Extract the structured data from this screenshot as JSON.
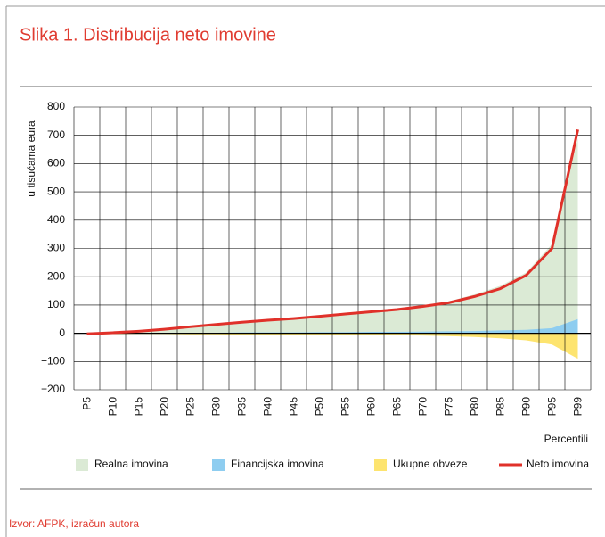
{
  "chart_data": {
    "type": "area-line",
    "title": "Slika 1. Distribucija neto imovine",
    "y_label": "u tisućama eura",
    "x_label": "Percentili",
    "source": "Izvor: AFPK, izračun autora",
    "categories": [
      "P5",
      "P10",
      "P15",
      "P20",
      "P25",
      "P30",
      "P35",
      "P40",
      "P45",
      "P50",
      "P55",
      "P60",
      "P65",
      "P70",
      "P75",
      "P80",
      "P85",
      "P90",
      "P95",
      "P99"
    ],
    "series": [
      {
        "name": "Realna imovina",
        "color": "#dbead5",
        "kind": "area",
        "values": [
          3,
          4,
          8,
          15,
          25,
          33,
          41,
          48,
          55,
          63,
          71,
          80,
          88,
          99,
          113,
          137,
          168,
          215,
          315,
          690
        ]
      },
      {
        "name": "Financijska imovina",
        "color": "#8ecdf0",
        "kind": "area",
        "values": [
          1,
          1,
          1,
          2,
          2,
          2,
          3,
          3,
          3,
          4,
          4,
          5,
          5,
          6,
          7,
          8,
          10,
          12,
          18,
          50
        ]
      },
      {
        "name": "Ukupne obveze",
        "color": "#fde46f",
        "kind": "area",
        "values": [
          -5,
          -3,
          -2,
          -3,
          -4,
          -4,
          -5,
          -5,
          -6,
          -6,
          -7,
          -7,
          -7,
          -8,
          -10,
          -13,
          -18,
          -25,
          -40,
          -90
        ]
      },
      {
        "name": "Neto imovina",
        "color": "#e0312a",
        "kind": "line",
        "values": [
          -2,
          2,
          7,
          14,
          23,
          31,
          39,
          46,
          52,
          60,
          68,
          76,
          84,
          95,
          108,
          130,
          158,
          205,
          300,
          720
        ]
      }
    ],
    "ylim": [
      -200,
      800
    ],
    "yticks": [
      {
        "value": -200,
        "label": "−200"
      },
      {
        "value": -100,
        "label": "−100"
      },
      0,
      100,
      200,
      300,
      400,
      500,
      600,
      700,
      800
    ],
    "grid": true
  }
}
